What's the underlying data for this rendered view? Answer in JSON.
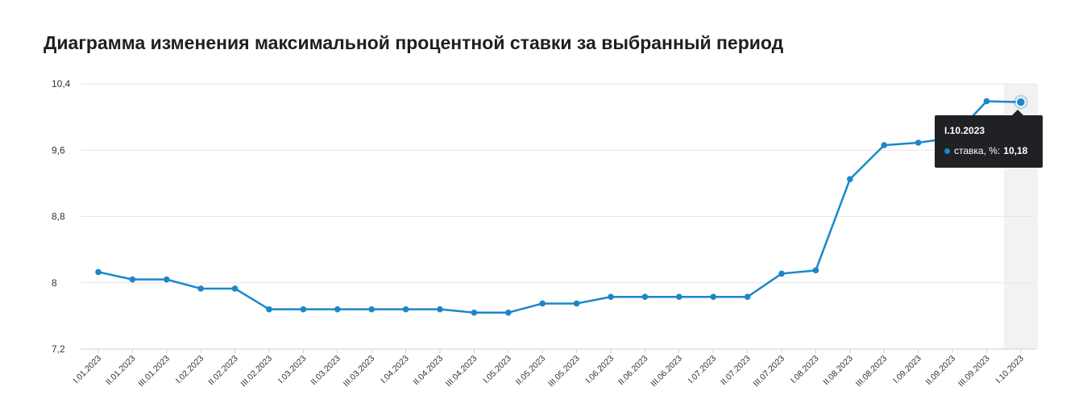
{
  "title": "Диаграмма изменения максимальной процентной ставки за выбранный период",
  "colors": {
    "series": "#1a87c9",
    "grid": "#e6e6e6",
    "highlight_band": "#f2f2f2",
    "tooltip_bg": "#202124"
  },
  "tooltip": {
    "date": "I.10.2023",
    "series_label": "ставка, %:",
    "value": "10,18"
  },
  "chart_data": {
    "type": "line",
    "title": "Диаграмма изменения максимальной процентной ставки за выбранный период",
    "xlabel": "",
    "ylabel": "",
    "ylim": [
      7.2,
      10.4
    ],
    "yticks": [
      {
        "value": 7.2,
        "label": "7,2"
      },
      {
        "value": 8,
        "label": "8"
      },
      {
        "value": 8.8,
        "label": "8,8"
      },
      {
        "value": 9.6,
        "label": "9,6"
      },
      {
        "value": 10.4,
        "label": "10,4"
      }
    ],
    "grid": true,
    "legend": "none",
    "highlighted_category": "I.10.2023",
    "categories": [
      "I.01.2023",
      "II.01.2023",
      "III.01.2023",
      "I.02.2023",
      "II.02.2023",
      "III.02.2023",
      "I.03.2023",
      "II.03.2023",
      "III.03.2023",
      "I.04.2023",
      "II.04.2023",
      "III.04.2023",
      "I.05.2023",
      "II.05.2023",
      "III.05.2023",
      "I.06.2023",
      "II.06.2023",
      "III.06.2023",
      "I.07.2023",
      "II.07.2023",
      "III.07.2023",
      "I.08.2023",
      "II.08.2023",
      "III.08.2023",
      "I.09.2023",
      "II.09.2023",
      "III.09.2023",
      "I.10.2023"
    ],
    "series": [
      {
        "values": [
          8.13,
          8.04,
          8.04,
          7.93,
          7.93,
          7.68,
          7.68,
          7.68,
          7.68,
          7.68,
          7.68,
          7.64,
          7.64,
          7.75,
          7.75,
          7.83,
          7.83,
          7.83,
          7.83,
          7.83,
          8.11,
          8.15,
          9.25,
          9.66,
          9.69,
          9.75,
          10.19,
          10.18
        ]
      }
    ]
  }
}
